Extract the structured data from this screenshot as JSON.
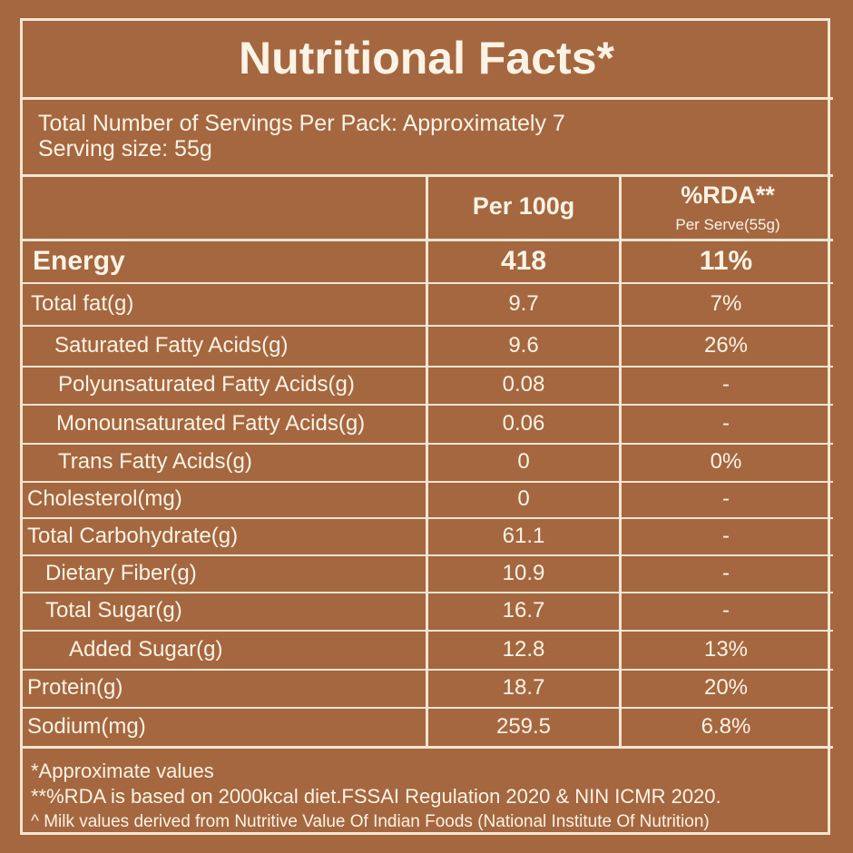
{
  "title": "Nutritional Facts*",
  "servings_per_pack": "Total Number of Servings Per Pack: Approximately 7",
  "serving_size": "Serving size: 55g",
  "header": {
    "per100": "Per 100g",
    "rda": "%RDA**",
    "rda_sub": "Per Serve(55g)"
  },
  "rows": [
    {
      "label": "Energy",
      "per100": "418",
      "rda": "11%"
    },
    {
      "label": "Total fat(g)",
      "per100": "9.7",
      "rda": "7%"
    },
    {
      "label": "Saturated Fatty Acids(g)",
      "per100": "9.6",
      "rda": "26%"
    },
    {
      "label": "Polyunsaturated Fatty Acids(g)",
      "per100": "0.08",
      "rda": "-"
    },
    {
      "label": "Monounsaturated Fatty Acids(g)",
      "per100": "0.06",
      "rda": "-"
    },
    {
      "label": "Trans Fatty Acids(g)",
      "per100": "0",
      "rda": "0%"
    },
    {
      "label": "Cholesterol(mg)",
      "per100": "0",
      "rda": "-"
    },
    {
      "label": "Total Carbohydrate(g)",
      "per100": "61.1",
      "rda": "-"
    },
    {
      "label": "Dietary Fiber(g)",
      "per100": "10.9",
      "rda": "-"
    },
    {
      "label": "Total Sugar(g)",
      "per100": "16.7",
      "rda": "-"
    },
    {
      "label": "Added Sugar(g)",
      "per100": "12.8",
      "rda": "13%"
    },
    {
      "label": "Protein(g)",
      "per100": "18.7",
      "rda": "20%"
    },
    {
      "label": "Sodium(mg)",
      "per100": "259.5",
      "rda": "6.8%"
    }
  ],
  "footnotes": [
    "*Approximate values",
    "**%RDA is based on 2000kcal diet.FSSAI Regulation 2020 & NIN ICMR 2020.",
    "^ Milk values derived from Nutritive Value Of Indian Foods (National Institute Of Nutrition)"
  ],
  "colors": {
    "background": "#a5673f",
    "lines": "#f3e6d2",
    "text": "#fbf3e6"
  }
}
